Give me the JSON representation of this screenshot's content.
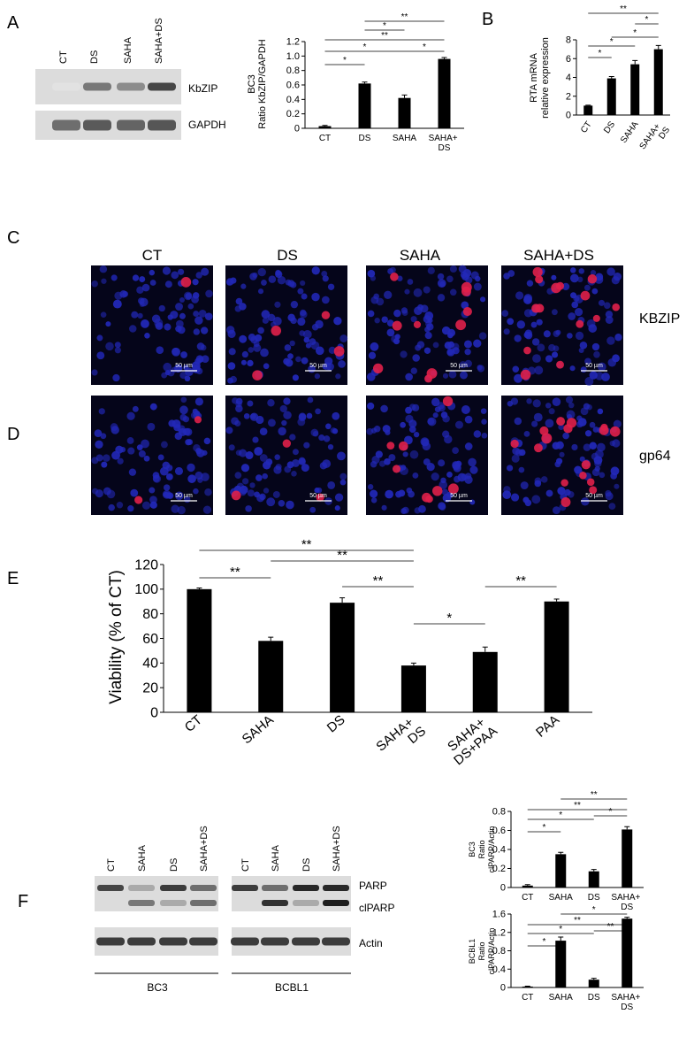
{
  "panel_labels": [
    "A",
    "B",
    "C",
    "D",
    "E",
    "F"
  ],
  "blot_a": {
    "lanes": [
      "CT",
      "DS",
      "SAHA",
      "SAHA+DS"
    ],
    "bands": [
      "KbZIP",
      "GAPDH"
    ]
  },
  "microscopy": {
    "columns": [
      "CT",
      "DS",
      "SAHA",
      "SAHA+DS"
    ],
    "rows": [
      "KBZIP",
      "gp64"
    ],
    "scale_bar": "50 µm"
  },
  "blot_f": {
    "lanes": [
      "CT",
      "SAHA",
      "DS",
      "SAHA+DS"
    ],
    "cell_lines": [
      "BC3",
      "BCBL1"
    ],
    "bands": [
      "PARP",
      "clPARP",
      "Actin"
    ]
  },
  "chart_data": [
    {
      "type": "bar",
      "ylabel": [
        "BC3",
        "Ratio KbZIP/GAPDH"
      ],
      "categories": [
        "CT",
        "DS",
        "SAHA",
        "SAHA+ DS"
      ],
      "values": [
        0.03,
        0.62,
        0.42,
        0.96
      ],
      "errors": [
        0.01,
        0.02,
        0.04,
        0.02
      ],
      "color": "#000000",
      "ylim": [
        0,
        1.2
      ],
      "yticks": [
        0,
        0.2,
        0.4,
        0.6,
        0.8,
        {
          "value": 1,
          "label": "1.0"
        },
        1.2
      ],
      "significance": [
        {
          "pair": [
            "CT",
            "DS"
          ],
          "label": "*"
        },
        {
          "pair": [
            "CT",
            "SAHA"
          ],
          "label": "*"
        },
        {
          "pair": [
            "SAHA",
            "SAHA+ DS"
          ],
          "label": "*"
        },
        {
          "pair": [
            "CT",
            "SAHA+ DS"
          ],
          "label": "**"
        },
        {
          "pair": [
            "DS",
            "SAHA"
          ],
          "label": "*"
        },
        {
          "pair": [
            "DS",
            "SAHA+ DS"
          ],
          "label": "**"
        }
      ]
    },
    {
      "type": "bar",
      "ylabel": [
        "RTA mRNA",
        "relative expression"
      ],
      "categories": [
        "CT",
        "DS",
        "SAHA",
        "SAHA+ DS"
      ],
      "values": [
        1,
        3.9,
        5.4,
        7.0
      ],
      "errors": [
        0.05,
        0.2,
        0.4,
        0.4
      ],
      "color": "#000000",
      "ylim": [
        0,
        8
      ],
      "yticks": [
        0,
        2,
        4,
        6,
        8
      ],
      "significance": [
        {
          "pair": [
            "CT",
            "DS"
          ],
          "label": "*"
        },
        {
          "pair": [
            "CT",
            "SAHA"
          ],
          "label": "*"
        },
        {
          "pair": [
            "DS",
            "SAHA+ DS"
          ],
          "label": "*"
        },
        {
          "pair": [
            "SAHA",
            "SAHA+ DS"
          ],
          "label": "*"
        },
        {
          "pair": [
            "CT",
            "SAHA+ DS"
          ],
          "label": "**"
        }
      ]
    },
    {
      "type": "bar",
      "ylabel": [
        "Viability (% of CT)"
      ],
      "categories": [
        "CT",
        "SAHA",
        "DS",
        "SAHA+ DS",
        "SAHA+ DS+PAA",
        "PAA"
      ],
      "values": [
        100,
        58,
        89,
        38,
        49,
        90
      ],
      "errors": [
        1,
        3,
        4,
        2,
        4,
        2
      ],
      "color": "#000000",
      "ylim": [
        0,
        120
      ],
      "yticks": [
        0,
        20,
        40,
        60,
        80,
        100,
        120
      ],
      "significance": [
        {
          "pair": [
            "CT",
            "SAHA"
          ],
          "label": "**"
        },
        {
          "pair": [
            "DS",
            "SAHA+ DS"
          ],
          "label": "**"
        },
        {
          "pair": [
            "SAHA",
            "SAHA+ DS"
          ],
          "label": "**"
        },
        {
          "pair": [
            "CT",
            "SAHA+ DS"
          ],
          "label": "**"
        },
        {
          "pair": [
            "SAHA+ DS",
            "SAHA+ DS+PAA"
          ],
          "label": "*"
        },
        {
          "pair": [
            "SAHA+ DS+PAA",
            "PAA"
          ],
          "label": "**"
        }
      ]
    },
    {
      "type": "bar",
      "ylabel": [
        "BC3",
        "Ratio",
        "clPARP/Actin"
      ],
      "categories": [
        "CT",
        "SAHA",
        "DS",
        "SAHA+ DS"
      ],
      "values": [
        0.02,
        0.35,
        0.17,
        0.61
      ],
      "errors": [
        0.01,
        0.02,
        0.02,
        0.03
      ],
      "color": "#000000",
      "ylim": [
        0,
        0.8
      ],
      "yticks": [
        0,
        0.2,
        0.4,
        0.6,
        0.8
      ],
      "significance": [
        {
          "pair": [
            "CT",
            "SAHA"
          ],
          "label": "*"
        },
        {
          "pair": [
            "CT",
            "DS"
          ],
          "label": "*"
        },
        {
          "pair": [
            "DS",
            "SAHA+ DS"
          ],
          "label": "*"
        },
        {
          "pair": [
            "CT",
            "SAHA+ DS"
          ],
          "label": "**"
        },
        {
          "pair": [
            "SAHA",
            "SAHA+ DS"
          ],
          "label": "**"
        }
      ]
    },
    {
      "type": "bar",
      "ylabel": [
        "BCBL1",
        "Ratio",
        "clPARP/Actin"
      ],
      "categories": [
        "CT",
        "SAHA",
        "DS",
        "SAHA+ DS"
      ],
      "values": [
        0.02,
        1.02,
        0.17,
        1.5
      ],
      "errors": [
        0.01,
        0.08,
        0.03,
        0.03
      ],
      "color": "#000000",
      "ylim": [
        0,
        1.6
      ],
      "yticks": [
        0,
        0.4,
        0.8,
        1.2,
        1.6
      ],
      "significance": [
        {
          "pair": [
            "CT",
            "SAHA"
          ],
          "label": "*"
        },
        {
          "pair": [
            "CT",
            "DS"
          ],
          "label": "*"
        },
        {
          "pair": [
            "CT",
            "SAHA+ DS"
          ],
          "label": "**"
        },
        {
          "pair": [
            "DS",
            "SAHA+ DS"
          ],
          "label": "**"
        },
        {
          "pair": [
            "SAHA",
            "SAHA+ DS"
          ],
          "label": "*"
        }
      ]
    }
  ]
}
